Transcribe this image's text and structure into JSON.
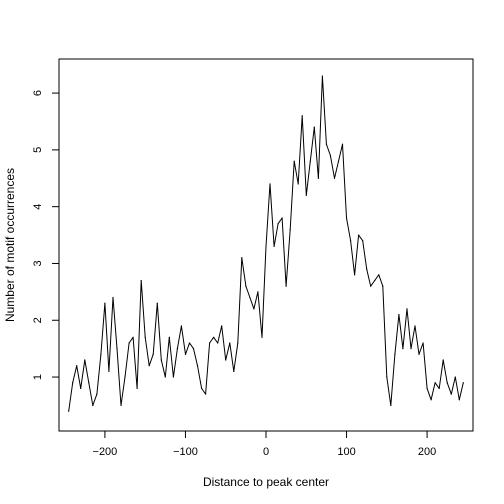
{
  "chart_data": {
    "type": "line",
    "title": "",
    "xlabel": "Distance to peak center",
    "ylabel": "Number of motif occurrences",
    "xlim": [
      -257,
      257
    ],
    "ylim": [
      0.05,
      6.6
    ],
    "xticks": [
      -200,
      -100,
      0,
      100,
      200
    ],
    "xtick_labels": [
      "−200",
      "−100",
      "0",
      "100",
      "200"
    ],
    "yticks": [
      1,
      2,
      3,
      4,
      5,
      6
    ],
    "ytick_labels": [
      "1",
      "2",
      "3",
      "4",
      "5",
      "6"
    ],
    "grid": false,
    "legend": "none",
    "line_color": "#000000",
    "series": [
      {
        "x": [
          -245,
          -240,
          -235,
          -230,
          -225,
          -220,
          -215,
          -210,
          -205,
          -200,
          -195,
          -190,
          -185,
          -180,
          -175,
          -170,
          -165,
          -160,
          -155,
          -150,
          -145,
          -140,
          -135,
          -130,
          -125,
          -120,
          -115,
          -110,
          -105,
          -100,
          -95,
          -90,
          -85,
          -80,
          -75,
          -70,
          -65,
          -60,
          -55,
          -50,
          -45,
          -40,
          -35,
          -30,
          -25,
          -20,
          -15,
          -10,
          -5,
          0,
          5,
          10,
          15,
          20,
          25,
          30,
          35,
          40,
          45,
          50,
          55,
          60,
          65,
          70,
          75,
          80,
          85,
          90,
          95,
          100,
          105,
          110,
          115,
          120,
          125,
          130,
          135,
          140,
          145,
          150,
          155,
          160,
          165,
          170,
          175,
          180,
          185,
          190,
          195,
          200,
          205,
          210,
          215,
          220,
          225,
          230,
          235,
          240,
          245
        ],
        "y": [
          0.4,
          0.9,
          1.2,
          0.8,
          1.3,
          0.9,
          0.5,
          0.7,
          1.4,
          2.3,
          1.1,
          2.4,
          1.5,
          0.5,
          1.0,
          1.6,
          1.7,
          0.8,
          2.7,
          1.7,
          1.2,
          1.4,
          2.3,
          1.3,
          1.0,
          1.7,
          1.0,
          1.5,
          1.9,
          1.4,
          1.6,
          1.5,
          1.2,
          0.8,
          0.7,
          1.6,
          1.7,
          1.6,
          1.9,
          1.3,
          1.6,
          1.1,
          1.6,
          3.1,
          2.6,
          2.4,
          2.2,
          2.5,
          1.7,
          3.3,
          4.4,
          3.3,
          3.7,
          3.8,
          2.6,
          3.6,
          4.8,
          4.4,
          5.6,
          4.2,
          4.8,
          5.4,
          4.5,
          6.3,
          5.1,
          4.9,
          4.5,
          4.8,
          5.1,
          3.8,
          3.4,
          2.8,
          3.5,
          3.4,
          2.9,
          2.6,
          2.7,
          2.8,
          2.6,
          1.0,
          0.5,
          1.4,
          2.1,
          1.5,
          2.2,
          1.5,
          1.9,
          1.4,
          1.6,
          0.8,
          0.6,
          0.9,
          0.8,
          1.3,
          0.9,
          0.7,
          1.0,
          0.6,
          0.9
        ]
      }
    ]
  }
}
